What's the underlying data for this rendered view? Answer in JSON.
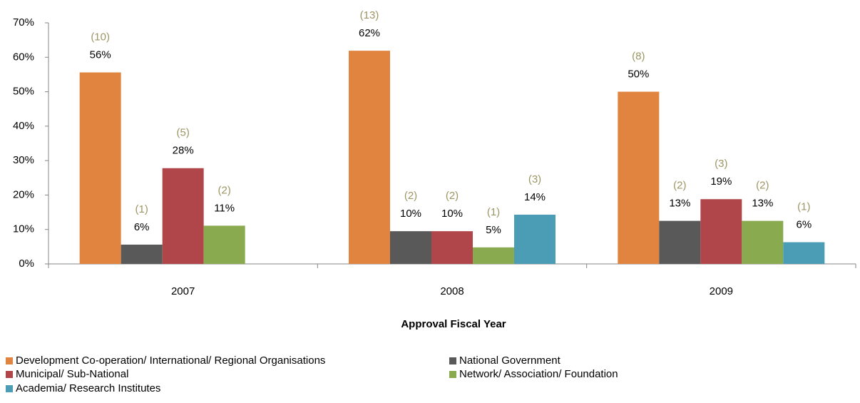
{
  "chart_data": {
    "type": "bar",
    "x_label": "Approval Fiscal Year",
    "categories": [
      "2007",
      "2008",
      "2009"
    ],
    "series": [
      {
        "name": "Development Co-operation/ International/ Regional Organisations",
        "color": "#e0843f",
        "values": [
          55.6,
          61.9,
          50
        ],
        "value_labels": [
          "56%",
          "62%",
          "50%"
        ],
        "count_labels": [
          "(10)",
          "(13)",
          "(8)"
        ]
      },
      {
        "name": "National Government",
        "color": "#595959",
        "values": [
          5.6,
          9.5,
          12.5
        ],
        "value_labels": [
          "6%",
          "10%",
          "13%"
        ],
        "count_labels": [
          "(1)",
          "(2)",
          "(2)"
        ]
      },
      {
        "name": "Municipal/ Sub-National",
        "color": "#b0464a",
        "values": [
          27.8,
          9.5,
          18.8
        ],
        "value_labels": [
          "28%",
          "10%",
          "19%"
        ],
        "count_labels": [
          "(5)",
          "(2)",
          "(3)"
        ]
      },
      {
        "name": "Network/ Association/ Foundation",
        "color": "#8aaa4f",
        "values": [
          11.1,
          4.8,
          12.5
        ],
        "value_labels": [
          "11%",
          "5%",
          "13%"
        ],
        "count_labels": [
          "(2)",
          "(1)",
          "(2)"
        ]
      },
      {
        "name": "Academia/ Research Institutes",
        "color": "#4a9db4",
        "values": [
          null,
          14.3,
          6.3
        ],
        "value_labels": [
          null,
          "14%",
          "6%"
        ],
        "count_labels": [
          null,
          "(3)",
          "(1)"
        ]
      }
    ],
    "ylim": [
      0,
      70
    ],
    "yticks": [
      {
        "value": 0,
        "label": "0%"
      },
      {
        "value": 10,
        "label": "10%"
      },
      {
        "value": 20,
        "label": "20%"
      },
      {
        "value": 30,
        "label": "30%"
      },
      {
        "value": 40,
        "label": "40%"
      },
      {
        "value": 50,
        "label": "50%"
      },
      {
        "value": 60,
        "label": "60%"
      },
      {
        "value": 70,
        "label": "70%"
      }
    ],
    "count_label_color": "#9c9563",
    "legend": "bottom"
  }
}
